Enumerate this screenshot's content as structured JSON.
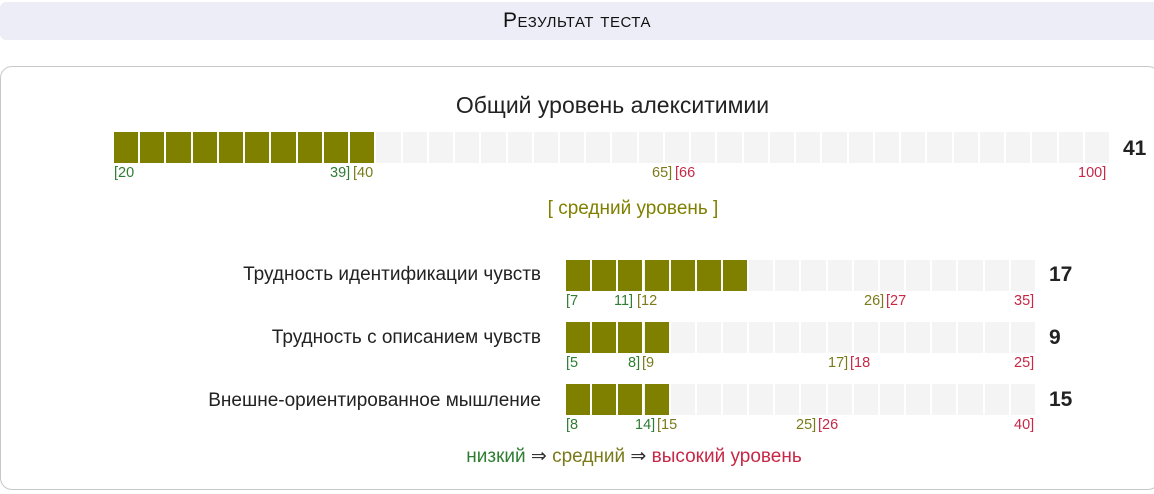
{
  "header": {
    "title": "Результат теста"
  },
  "main": {
    "title": "Общий уровень алекситимии",
    "score": "41",
    "value": 41,
    "min": 20,
    "max": 100,
    "filled": 10,
    "segments": 38,
    "ticks": {
      "low_start": "[20",
      "low_end": "39]",
      "mid_start": "[40",
      "mid_end": "65]",
      "high_start": "[66",
      "high_end": "100]"
    },
    "level": "[ средний уровень ]"
  },
  "scales": [
    {
      "label": "Трудность идентификации чувств",
      "score": "17",
      "value": 17,
      "min": 7,
      "max": 35,
      "filled": 7,
      "segments": 18,
      "ticks": {
        "low_start": "[7",
        "low_end": "11]",
        "mid_start": "[12",
        "mid_end": "26]",
        "high_start": "[27",
        "high_end": "35]"
      }
    },
    {
      "label": "Трудность с описанием чувств",
      "score": "9",
      "value": 9,
      "min": 5,
      "max": 25,
      "filled": 4,
      "segments": 18,
      "ticks": {
        "low_start": "[5",
        "low_end": "8]",
        "mid_start": "[9",
        "mid_end": "17]",
        "high_start": "[18",
        "high_end": "25]"
      }
    },
    {
      "label": "Внешне-ориентированное мышление",
      "score": "15",
      "value": 15,
      "min": 8,
      "max": 40,
      "filled": 4,
      "segments": 18,
      "ticks": {
        "low_start": "[8",
        "low_end": "14]",
        "mid_start": "[15",
        "mid_end": "25]",
        "high_start": "[26",
        "high_end": "40]"
      }
    }
  ],
  "legend": {
    "low": "низкий",
    "arrow": "⇒",
    "mid": "средний",
    "high": "высокий уровень"
  },
  "colors": {
    "fill": "#808000",
    "empty": "#f4f4f4",
    "low": "#2e7d32",
    "mid": "#7a7a1a",
    "high": "#c62846"
  }
}
